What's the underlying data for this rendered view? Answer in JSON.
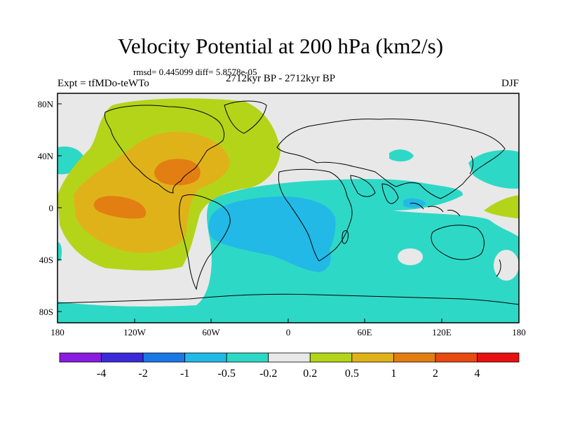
{
  "title": "Velocity Potential at 200 hPa (km2/s)",
  "stats": "rmsd= 0.445099 diff= 5.8578e-05",
  "experiment": "Expt = tfMDo-teWTo",
  "period": "2712kyr BP - 2712kyr BP",
  "season": "DJF",
  "lat_ticks": [
    "80N",
    "40N",
    "0",
    "40S",
    "80S"
  ],
  "lon_ticks": [
    "180",
    "120W",
    "60W",
    "0",
    "60E",
    "120E",
    "180"
  ],
  "colorbar": {
    "colors": [
      "#8a1be0",
      "#3a2ad8",
      "#1a78e6",
      "#22b9e6",
      "#2ed8c6",
      "#e8e8e8",
      "#b4d41a",
      "#e0b21a",
      "#e27e12",
      "#e84a10",
      "#e81010"
    ],
    "labels": [
      "-4",
      "-2",
      "-1",
      "-0.5",
      "-0.2",
      "0.2",
      "0.5",
      "1",
      "2",
      "4"
    ]
  },
  "map_colors": {
    "ocean_bg": "#e8e8e8",
    "neg_02": "#2ed8c6",
    "neg_05": "#22b9e6",
    "neg_1": "#1a78e6",
    "pos_02": "#b4d41a",
    "pos_05": "#e0b21a",
    "pos_1": "#e27e12",
    "pos_2": "#e84a10"
  }
}
